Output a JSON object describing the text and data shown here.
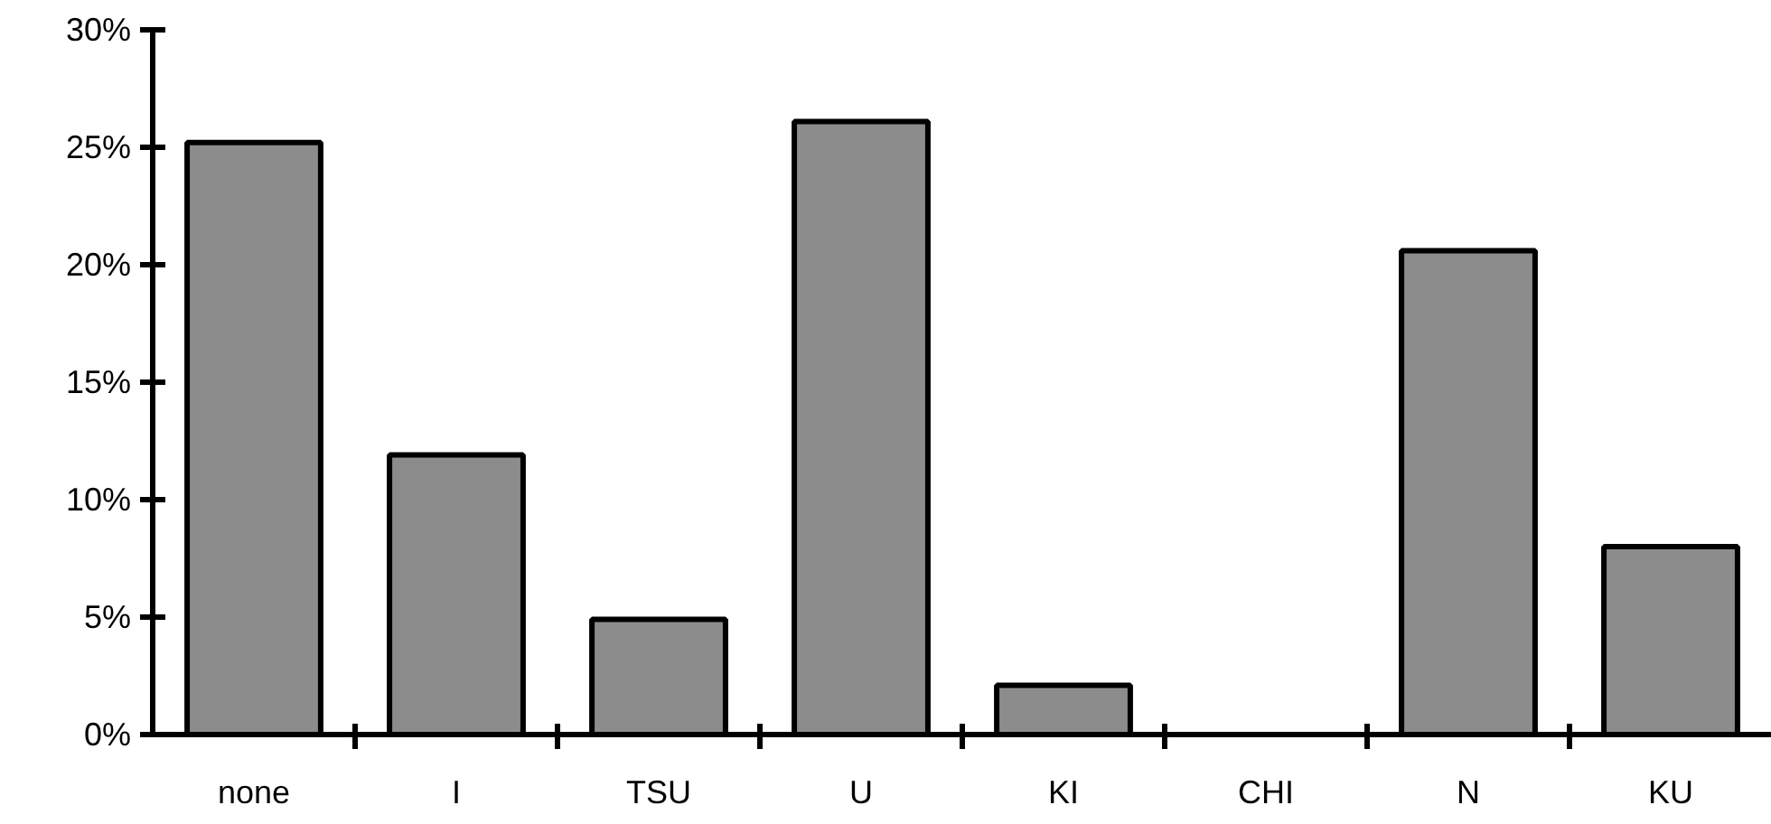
{
  "chart_data": {
    "type": "bar",
    "categories": [
      "none",
      "I",
      "TSU",
      "U",
      "KI",
      "CHI",
      "N",
      "KU"
    ],
    "values": [
      25.2,
      11.9,
      4.9,
      26.1,
      2.1,
      0,
      20.6,
      8.0
    ],
    "color": "#8c8c8c",
    "ylim": [
      0,
      30
    ],
    "yticks": [
      {
        "value": 0,
        "label": "0%"
      },
      {
        "value": 5,
        "label": "5%"
      },
      {
        "value": 10,
        "label": "10%"
      },
      {
        "value": 15,
        "label": "15%"
      },
      {
        "value": 20,
        "label": "20%"
      },
      {
        "value": 25,
        "label": "25%"
      },
      {
        "value": 30,
        "label": "30%"
      }
    ],
    "grid": false
  }
}
